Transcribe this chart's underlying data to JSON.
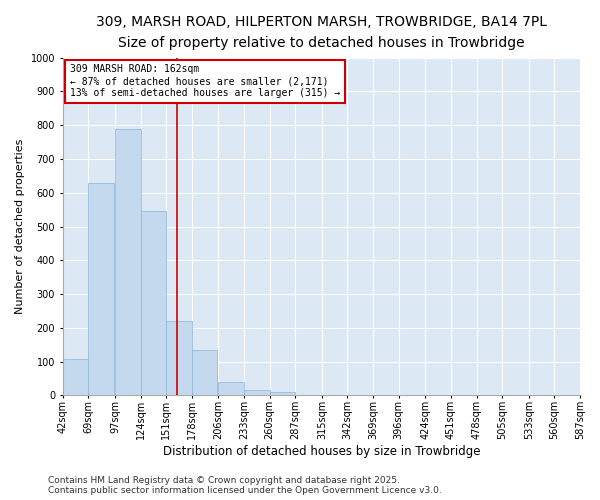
{
  "title": "309, MARSH ROAD, HILPERTON MARSH, TROWBRIDGE, BA14 7PL",
  "subtitle": "Size of property relative to detached houses in Trowbridge",
  "xlabel": "Distribution of detached houses by size in Trowbridge",
  "ylabel": "Number of detached properties",
  "bar_color": "#c5d9ee",
  "bar_edge_color": "#8ab4d9",
  "bins": [
    42,
    69,
    97,
    124,
    151,
    178,
    206,
    233,
    260,
    287,
    315,
    342,
    369,
    396,
    424,
    451,
    478,
    505,
    533,
    560,
    587
  ],
  "counts": [
    108,
    630,
    790,
    545,
    220,
    135,
    40,
    15,
    10,
    0,
    0,
    0,
    0,
    0,
    0,
    0,
    0,
    0,
    0,
    0
  ],
  "property_size": 162,
  "red_line_color": "#cc0000",
  "annotation_line1": "309 MARSH ROAD: 162sqm",
  "annotation_line2": "← 87% of detached houses are smaller (2,171)",
  "annotation_line3": "13% of semi-detached houses are larger (315) →",
  "annotation_box_color": "#ffffff",
  "annotation_box_edge": "#cc0000",
  "ylim": [
    0,
    1000
  ],
  "yticks": [
    0,
    100,
    200,
    300,
    400,
    500,
    600,
    700,
    800,
    900,
    1000
  ],
  "background_color": "#dce9f5",
  "fig_background": "#ffffff",
  "footer_text": "Contains HM Land Registry data © Crown copyright and database right 2025.\nContains public sector information licensed under the Open Government Licence v3.0.",
  "title_fontsize": 10,
  "subtitle_fontsize": 9,
  "annotation_fontsize": 7,
  "tick_fontsize": 7,
  "ylabel_fontsize": 8,
  "xlabel_fontsize": 8.5,
  "footer_fontsize": 6.5
}
